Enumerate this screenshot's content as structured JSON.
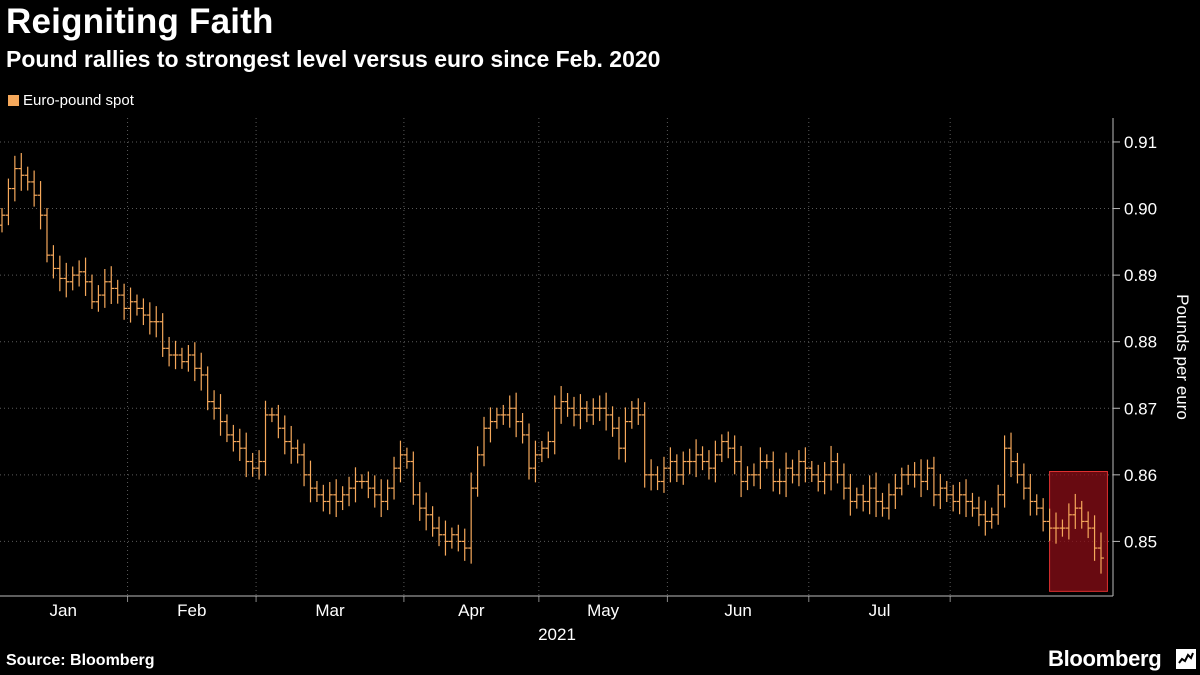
{
  "header": {
    "title": "Reigniting Faith",
    "subtitle": "Pound rallies to strongest level versus euro since Feb. 2020"
  },
  "legend": {
    "label": "Euro-pound spot",
    "color": "#f5a85b"
  },
  "footer": {
    "source": "Source: Bloomberg",
    "brand": "Bloomberg"
  },
  "highlight_color": "#8b0d17",
  "chart_data": {
    "type": "ohlc",
    "title": "Reigniting Faith",
    "subtitle": "Pound rallies to strongest level versus euro since Feb. 2020",
    "ylabel": "Pounds per euro",
    "xlabel": "2021",
    "year_label": "2021",
    "ylim": [
      0.8418,
      0.9136
    ],
    "yticks": [
      0.85,
      0.86,
      0.87,
      0.88,
      0.89,
      0.9,
      0.91
    ],
    "ytick_labels": [
      "0.85",
      "0.86",
      "0.87",
      "0.88",
      "0.89",
      "0.90",
      "0.91"
    ],
    "months": [
      "Jan",
      "Feb",
      "Mar",
      "Apr",
      "May",
      "Jun",
      "Jul"
    ],
    "series": [
      {
        "name": "Euro-pound spot",
        "close": [
          0.899,
          0.903,
          0.906,
          0.905,
          0.904,
          0.902,
          0.899,
          0.893,
          0.891,
          0.8895,
          0.889,
          0.89,
          0.8905,
          0.889,
          0.886,
          0.887,
          0.889,
          0.888,
          0.887,
          0.885,
          0.886,
          0.885,
          0.884,
          0.883,
          0.883,
          0.879,
          0.878,
          0.878,
          0.877,
          0.878,
          0.876,
          0.875,
          0.871,
          0.87,
          0.868,
          0.866,
          0.865,
          0.864,
          0.862,
          0.861,
          0.862,
          0.869,
          0.869,
          0.867,
          0.865,
          0.864,
          0.863,
          0.86,
          0.858,
          0.857,
          0.856,
          0.857,
          0.856,
          0.857,
          0.858,
          0.859,
          0.859,
          0.858,
          0.857,
          0.856,
          0.858,
          0.861,
          0.863,
          0.862,
          0.857,
          0.855,
          0.854,
          0.852,
          0.851,
          0.85,
          0.851,
          0.85,
          0.849,
          0.858,
          0.863,
          0.867,
          0.868,
          0.869,
          0.869,
          0.87,
          0.868,
          0.866,
          0.861,
          0.863,
          0.864,
          0.865,
          0.87,
          0.871,
          0.87,
          0.869,
          0.87,
          0.869,
          0.87,
          0.87,
          0.869,
          0.867,
          0.864,
          0.868,
          0.87,
          0.869,
          0.86,
          0.86,
          0.859,
          0.861,
          0.862,
          0.86,
          0.862,
          0.862,
          0.863,
          0.862,
          0.861,
          0.863,
          0.865,
          0.864,
          0.862,
          0.859,
          0.86,
          0.86,
          0.862,
          0.862,
          0.859,
          0.859,
          0.861,
          0.86,
          0.862,
          0.861,
          0.86,
          0.859,
          0.86,
          0.862,
          0.86,
          0.858,
          0.856,
          0.857,
          0.856,
          0.858,
          0.856,
          0.855,
          0.857,
          0.858,
          0.86,
          0.86,
          0.86,
          0.859,
          0.861,
          0.857,
          0.858,
          0.857,
          0.856,
          0.857,
          0.856,
          0.855,
          0.854,
          0.853,
          0.854,
          0.857,
          0.864,
          0.862,
          0.86,
          0.858,
          0.856,
          0.855,
          0.853,
          0.852,
          0.852,
          0.852,
          0.854,
          0.855,
          0.853,
          0.852,
          0.849,
          0.8475
        ]
      }
    ],
    "highlight": {
      "from_day": 163,
      "to_day": 172,
      "y_from": 0.8425,
      "y_to": 0.8605
    }
  }
}
